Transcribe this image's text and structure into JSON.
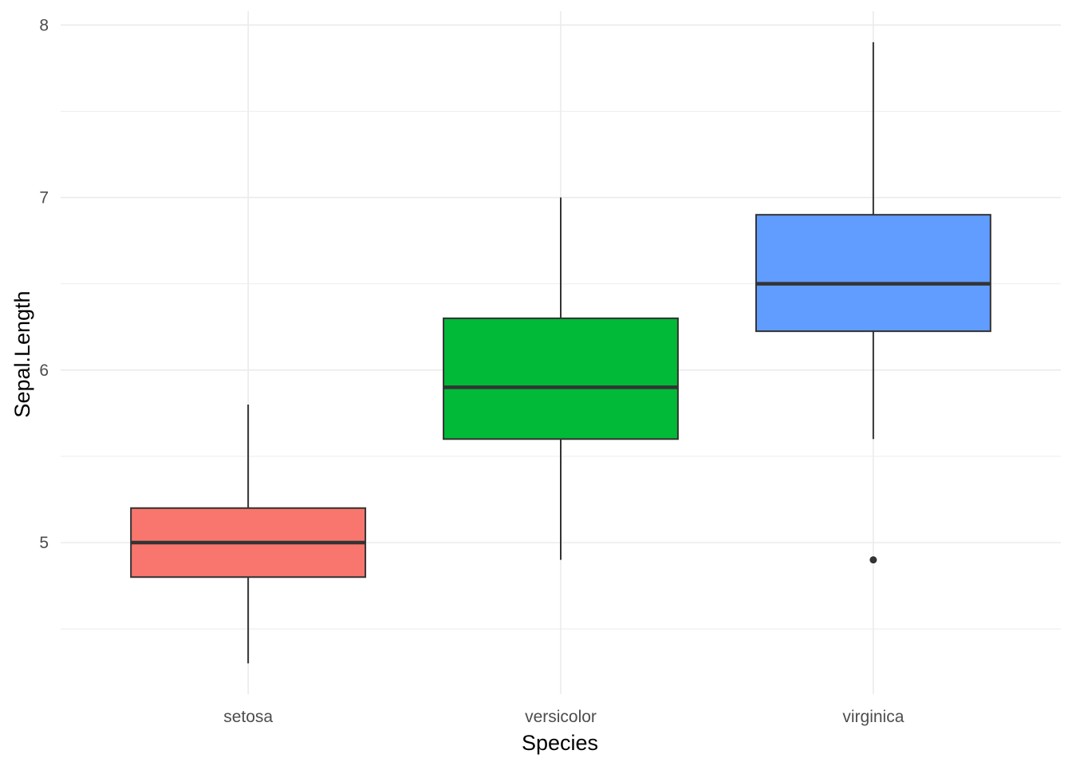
{
  "chart_data": {
    "type": "boxplot",
    "xlabel": "Species",
    "ylabel": "Sepal.Length",
    "categories": [
      "setosa",
      "versicolor",
      "virginica"
    ],
    "colors": [
      "#F8766D",
      "#00BA38",
      "#619CFF"
    ],
    "ylim": [
      4.2,
      8.08
    ],
    "yticks": [
      5,
      6,
      7,
      8
    ],
    "yticks_minor": [
      4.5,
      5.5,
      6.5,
      7.5
    ],
    "grid": true,
    "boxes": [
      {
        "category": "setosa",
        "min": 4.3,
        "q1": 4.8,
        "median": 5.0,
        "q3": 5.2,
        "max": 5.8,
        "outliers": []
      },
      {
        "category": "versicolor",
        "min": 4.9,
        "q1": 5.6,
        "median": 5.9,
        "q3": 6.3,
        "max": 7.0,
        "outliers": []
      },
      {
        "category": "virginica",
        "min": 5.6,
        "q1": 6.225,
        "median": 6.5,
        "q3": 6.9,
        "max": 7.9,
        "outliers": [
          4.9
        ]
      }
    ]
  }
}
